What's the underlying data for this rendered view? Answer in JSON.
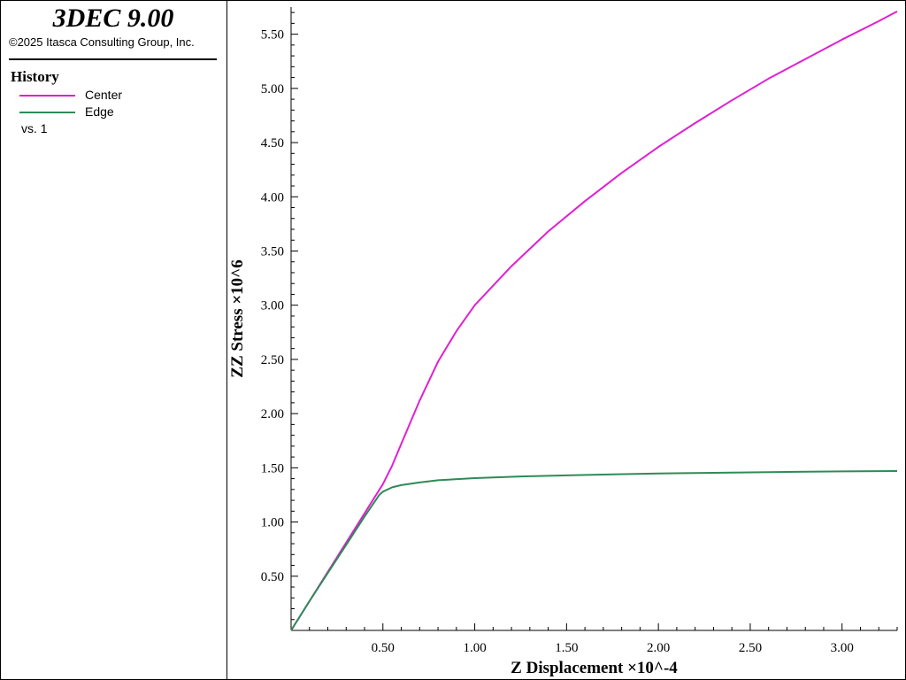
{
  "app": {
    "title": "3DEC 9.00",
    "copyright": "©2025 Itasca Consulting Group, Inc."
  },
  "legend": {
    "heading": "History",
    "vs_label": "vs. 1",
    "entries": [
      {
        "label": "Center",
        "color": "#e020d0"
      },
      {
        "label": "Edge",
        "color": "#2e8b57"
      }
    ]
  },
  "chart_data": {
    "type": "line",
    "xlabel": "Z Displacement ×10^-4",
    "ylabel": "ZZ Stress ×10^6",
    "xlim": [
      0,
      3.3
    ],
    "ylim": [
      0,
      5.75
    ],
    "x_ticks": [
      "0.50",
      "1.00",
      "1.50",
      "2.00",
      "2.50",
      "3.00"
    ],
    "y_ticks": [
      "0.50",
      "1.00",
      "1.50",
      "2.00",
      "2.50",
      "3.00",
      "3.50",
      "4.00",
      "4.50",
      "5.00",
      "5.50"
    ],
    "grid": false,
    "legend_position": "left-panel",
    "series": [
      {
        "name": "Center",
        "color": "#e020d0",
        "x": [
          0,
          0.1,
          0.2,
          0.3,
          0.4,
          0.5,
          0.55,
          0.6,
          0.7,
          0.8,
          0.9,
          1.0,
          1.2,
          1.4,
          1.6,
          1.8,
          2.0,
          2.2,
          2.4,
          2.6,
          2.8,
          3.0,
          3.2,
          3.3
        ],
        "y": [
          0,
          0.27,
          0.54,
          0.81,
          1.08,
          1.35,
          1.52,
          1.72,
          2.12,
          2.48,
          2.76,
          3.0,
          3.36,
          3.68,
          3.96,
          4.22,
          4.46,
          4.68,
          4.89,
          5.09,
          5.27,
          5.45,
          5.62,
          5.71
        ]
      },
      {
        "name": "Edge",
        "color": "#2e8b57",
        "x": [
          0,
          0.1,
          0.2,
          0.3,
          0.4,
          0.48,
          0.5,
          0.55,
          0.6,
          0.7,
          0.8,
          1.0,
          1.25,
          1.5,
          1.75,
          2.0,
          2.25,
          2.5,
          2.75,
          3.0,
          3.3
        ],
        "y": [
          0,
          0.27,
          0.53,
          0.79,
          1.05,
          1.25,
          1.28,
          1.32,
          1.34,
          1.365,
          1.385,
          1.405,
          1.42,
          1.43,
          1.44,
          1.448,
          1.453,
          1.458,
          1.463,
          1.467,
          1.47
        ]
      }
    ]
  }
}
